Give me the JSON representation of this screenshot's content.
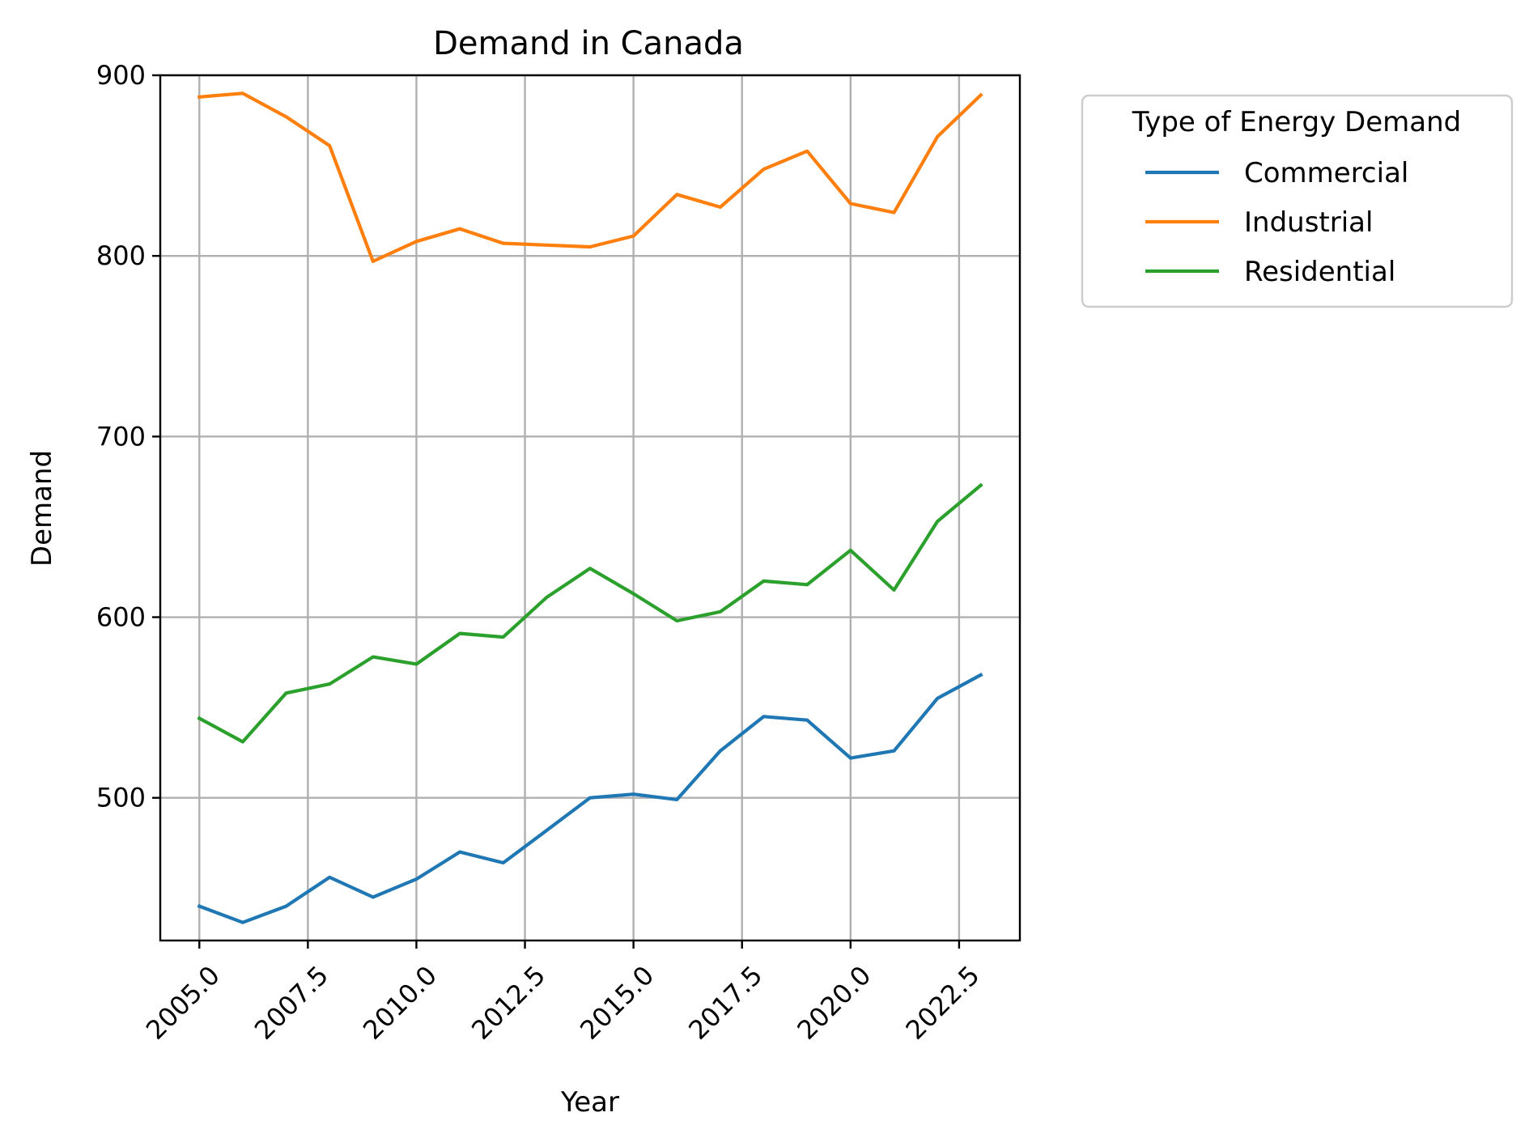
{
  "chart_data": {
    "type": "line",
    "title": "Demand in Canada",
    "xlabel": "Year",
    "ylabel": "Demand",
    "x": [
      2005,
      2006,
      2007,
      2008,
      2009,
      2010,
      2011,
      2012,
      2013,
      2014,
      2015,
      2016,
      2017,
      2018,
      2019,
      2020,
      2021,
      2022,
      2023
    ],
    "series": [
      {
        "name": "Commercial",
        "color": "#1f77b4",
        "values": [
          440,
          431,
          440,
          456,
          445,
          455,
          470,
          464,
          482,
          500,
          502,
          499,
          526,
          545,
          543,
          522,
          526,
          555,
          568
        ]
      },
      {
        "name": "Industrial",
        "color": "#ff7f0e",
        "values": [
          888,
          890,
          877,
          861,
          797,
          808,
          815,
          807,
          806,
          805,
          811,
          834,
          827,
          848,
          858,
          829,
          824,
          866,
          889
        ]
      },
      {
        "name": "Residential",
        "color": "#2ca02c",
        "values": [
          544,
          531,
          558,
          563,
          578,
          574,
          591,
          589,
          611,
          627,
          613,
          598,
          603,
          620,
          618,
          637,
          615,
          653,
          673
        ]
      }
    ],
    "xlim": [
      2004.1,
      2023.9
    ],
    "ylim": [
      421,
      900
    ],
    "xticks": [
      2005,
      2007.5,
      2010,
      2012.5,
      2015,
      2017.5,
      2020,
      2022.5
    ],
    "xtick_labels": [
      "2005.0",
      "2007.5",
      "2010.0",
      "2012.5",
      "2015.0",
      "2017.5",
      "2020.0",
      "2022.5"
    ],
    "yticks": [
      500,
      600,
      700,
      800,
      900
    ],
    "ytick_labels": [
      "500",
      "600",
      "700",
      "800",
      "900"
    ],
    "grid": true,
    "legend": {
      "title": "Type of Energy Demand",
      "placement": "outside-right-top"
    }
  }
}
